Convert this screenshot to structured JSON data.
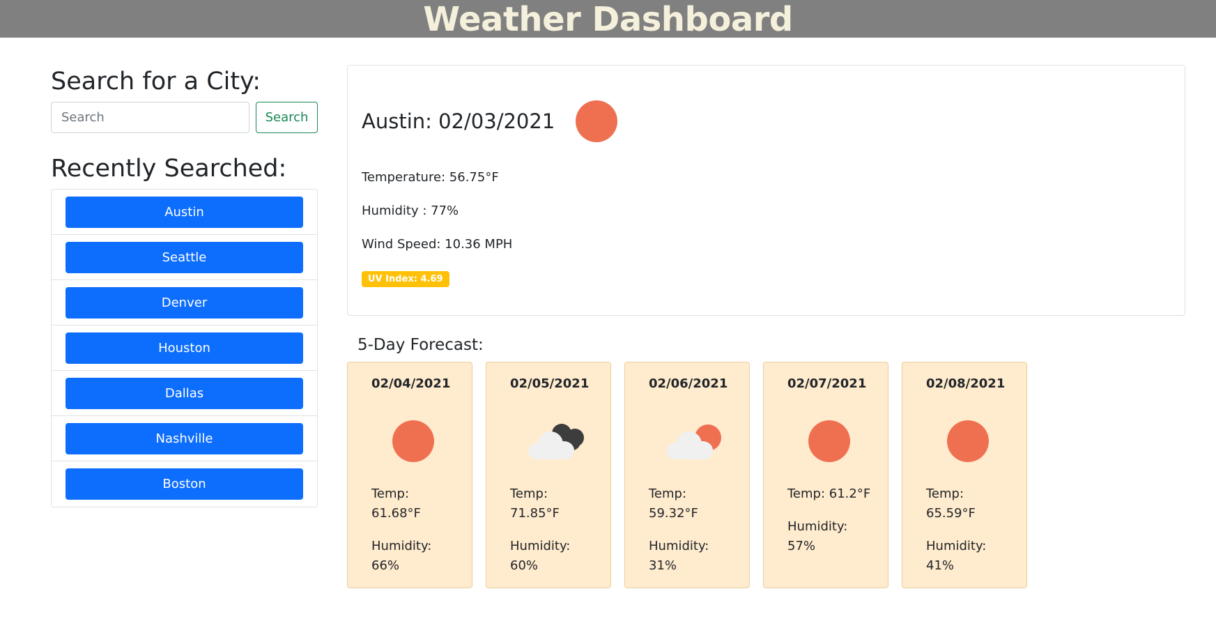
{
  "header": {
    "title": "Weather Dashboard"
  },
  "search": {
    "title": "Search for a City:",
    "placeholder": "Search",
    "button_label": "Search"
  },
  "recent": {
    "title": "Recently Searched:",
    "cities": [
      "Austin",
      "Seattle",
      "Denver",
      "Houston",
      "Dallas",
      "Nashville",
      "Boston"
    ]
  },
  "current": {
    "title": "Austin: 02/03/2021",
    "icon": "sun-icon",
    "temperature": "Temperature: 56.75°F",
    "humidity": "Humidity : 77%",
    "wind": "Wind Speed: 10.36 MPH",
    "uv": "UV Index: 4.69"
  },
  "forecast": {
    "title": "5-Day Forecast:",
    "days": [
      {
        "date": "02/04/2021",
        "icon": "sun-icon",
        "temp_label": "Temp:",
        "temp": "61.68°F",
        "humidity_label": "Humidity:",
        "humidity": "66%"
      },
      {
        "date": "02/05/2021",
        "icon": "dark-cloud-icon",
        "temp_label": "Temp:",
        "temp": "71.85°F",
        "humidity_label": "Humidity:",
        "humidity": "60%"
      },
      {
        "date": "02/06/2021",
        "icon": "partly-cloudy-icon",
        "temp_label": "Temp:",
        "temp": "59.32°F",
        "humidity_label": "Humidity:",
        "humidity": "31%"
      },
      {
        "date": "02/07/2021",
        "icon": "sun-icon",
        "temp_label": "Temp:",
        "temp": "61.2°F",
        "humidity_label": "Humidity:",
        "humidity": "57%"
      },
      {
        "date": "02/08/2021",
        "icon": "sun-icon",
        "temp_label": "Temp:",
        "temp": "65.59°F",
        "humidity_label": "Humidity:",
        "humidity": "41%"
      }
    ]
  },
  "colors": {
    "header_bg": "#808080",
    "header_text": "#f5f0dc",
    "city_button": "#0d6efd",
    "search_button": "#198754",
    "sun": "#ef7051",
    "uv_badge": "#ffc107",
    "forecast_card": "#ffebcd"
  }
}
